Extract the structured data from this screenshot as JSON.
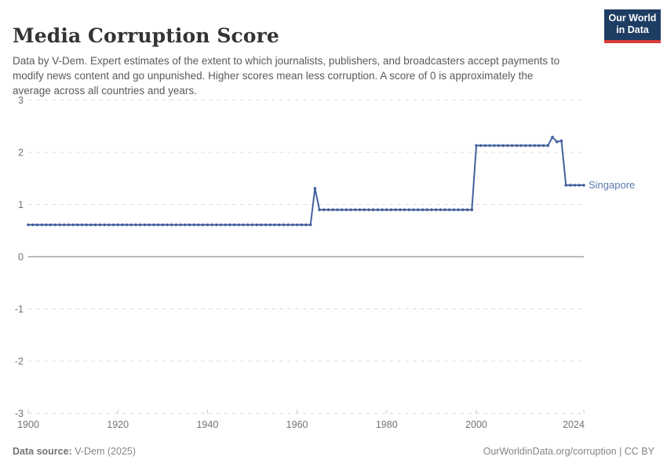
{
  "header": {
    "title": "Media Corruption Score",
    "subtitle": "Data by V-Dem. Expert estimates of the extent to which journalists, publishers, and broadcasters accept payments to modify news content and go unpunished. Higher scores mean less corruption. A score of 0 is approximately the average across all countries and years.",
    "logo": {
      "line1": "Our World",
      "line2": "in Data",
      "bg_color": "#1d3d63",
      "bar_color": "#d73c34"
    }
  },
  "chart_data": {
    "type": "line",
    "title": "Media Corruption Score",
    "xlabel": "",
    "ylabel": "",
    "xlim": [
      1900,
      2024
    ],
    "ylim": [
      -3,
      3
    ],
    "x_ticks": [
      1900,
      1920,
      1940,
      1960,
      1980,
      2000,
      2024
    ],
    "y_ticks": [
      3,
      2,
      1,
      0,
      -1,
      -2,
      -3
    ],
    "grid": "dashed-horizontal",
    "zero_line_at": 0,
    "legend_position": "end-of-line",
    "point_markers": true,
    "series": [
      {
        "name": "Singapore",
        "color": "#44619d",
        "label_color": "#5b79b0",
        "runs": [
          {
            "from": 1900,
            "to": 1963,
            "value": 0.61
          },
          {
            "from": 1964,
            "to": 1964,
            "value": 1.31
          },
          {
            "from": 1965,
            "to": 1999,
            "value": 0.9
          },
          {
            "from": 2000,
            "to": 2016,
            "value": 2.13
          },
          {
            "from": 2017,
            "to": 2017,
            "value": 2.29
          },
          {
            "from": 2018,
            "to": 2018,
            "value": 2.2
          },
          {
            "from": 2019,
            "to": 2019,
            "value": 2.22
          },
          {
            "from": 2020,
            "to": 2024,
            "value": 1.37
          }
        ]
      }
    ]
  },
  "footer": {
    "data_source_label": "Data source:",
    "data_source_value": " V-Dem (2025)",
    "credit": "OurWorldinData.org/corruption | CC BY"
  },
  "colors": {
    "grid": "#dcdcdc",
    "tick": "#c8c8c8",
    "zero_line": "#a3a3a3",
    "axis_text": "#737373"
  }
}
